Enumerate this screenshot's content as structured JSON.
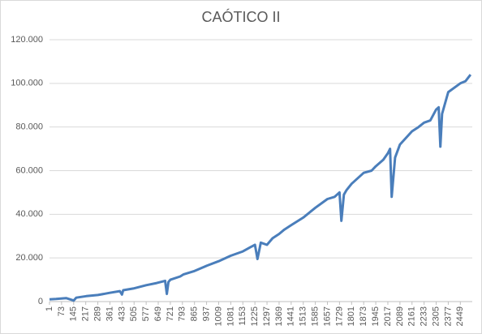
{
  "chart_data": {
    "type": "line",
    "title": "CAÓTICO II",
    "color": "#4a7ebb",
    "x": [
      1,
      40,
      100,
      145,
      160,
      220,
      289,
      360,
      420,
      433,
      440,
      500,
      577,
      640,
      690,
      700,
      710,
      721,
      780,
      800,
      865,
      940,
      1009,
      1080,
      1153,
      1200,
      1225,
      1240,
      1260,
      1297,
      1330,
      1369,
      1400,
      1441,
      1513,
      1585,
      1657,
      1700,
      1729,
      1740,
      1755,
      1770,
      1801,
      1873,
      1920,
      1945,
      1990,
      2017,
      2030,
      2040,
      2060,
      2089,
      2161,
      2200,
      2233,
      2270,
      2305,
      2320,
      2330,
      2340,
      2377,
      2449,
      2480,
      2510
    ],
    "values": [
      1000,
      1200,
      1600,
      500,
      1800,
      2500,
      3000,
      4000,
      4800,
      3200,
      5200,
      6000,
      7500,
      8500,
      9500,
      3500,
      9000,
      10000,
      11500,
      12500,
      14000,
      16500,
      18500,
      21000,
      23000,
      25000,
      26000,
      19500,
      27000,
      26000,
      29000,
      31000,
      33000,
      35000,
      38500,
      43000,
      47000,
      48000,
      50000,
      37000,
      49000,
      51000,
      54000,
      59000,
      60000,
      62000,
      65000,
      68000,
      70000,
      48000,
      66000,
      72000,
      78000,
      80000,
      82000,
      83000,
      88000,
      89000,
      71000,
      86000,
      96000,
      100000,
      101000,
      104000
    ],
    "xlim": [
      1,
      2520
    ],
    "ylim": [
      0,
      120000
    ],
    "xticks": [
      1,
      73,
      145,
      217,
      289,
      361,
      433,
      505,
      577,
      649,
      721,
      793,
      865,
      937,
      1009,
      1081,
      1153,
      1225,
      1297,
      1369,
      1441,
      1513,
      1585,
      1657,
      1729,
      1801,
      1873,
      1945,
      2017,
      2089,
      2161,
      2233,
      2305,
      2377,
      2449
    ],
    "yticks": [
      0,
      {
        "value": 20000,
        "label": "20.000"
      },
      {
        "value": 40000,
        "label": "40.000"
      },
      {
        "value": 60000,
        "label": "60.000"
      },
      {
        "value": 80000,
        "label": "80.000"
      },
      {
        "value": 100000,
        "label": "100.000"
      },
      {
        "value": 120000,
        "label": "120.000"
      }
    ],
    "grid": true
  }
}
